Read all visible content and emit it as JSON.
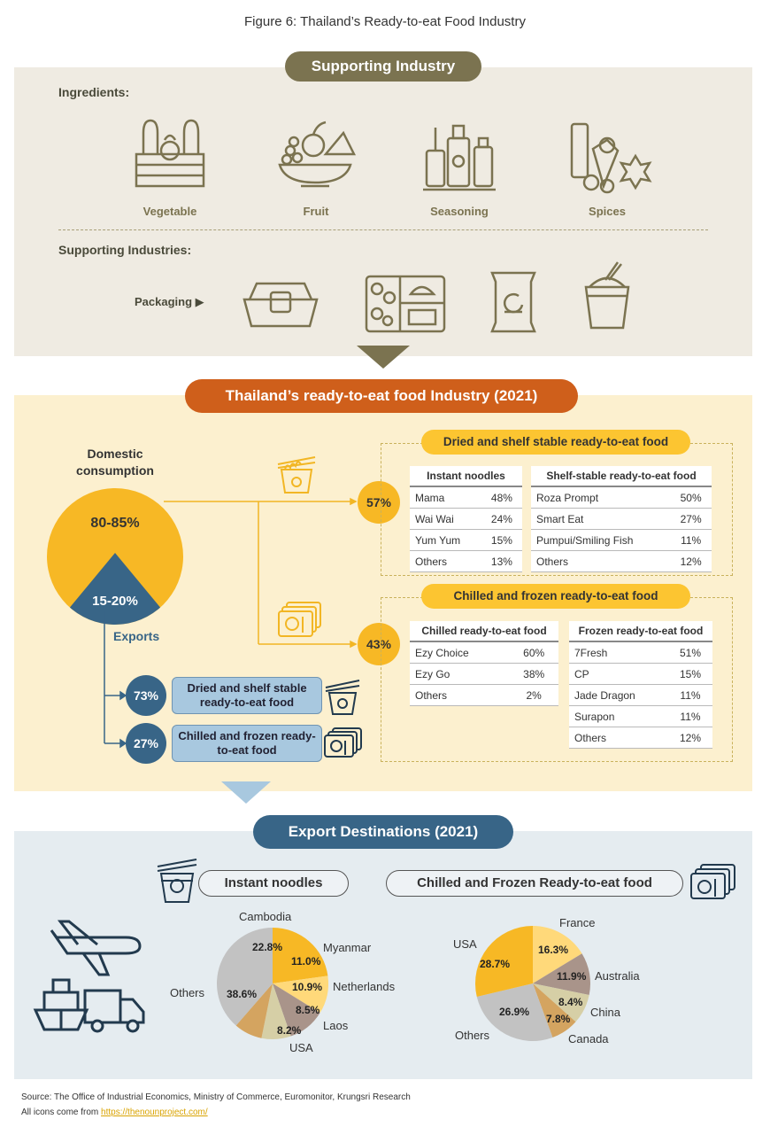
{
  "figure_title": "Figure 6: Thailand’s Ready-to-eat Food Industry",
  "supporting": {
    "header": "Supporting Industry",
    "ingredients_label": "Ingredients:",
    "ingredients": [
      {
        "label": "Vegetable",
        "icon": "vegetable-crate-icon"
      },
      {
        "label": "Fruit",
        "icon": "fruit-bowl-icon"
      },
      {
        "label": "Seasoning",
        "icon": "seasoning-bottles-icon"
      },
      {
        "label": "Spices",
        "icon": "spices-icon"
      }
    ],
    "industries_label": "Supporting Industries:",
    "packaging_label": "Packaging ▶",
    "packaging_icons": [
      "food-box-icon",
      "bento-tray-icon",
      "snack-bag-icon",
      "noodle-cup-icon"
    ]
  },
  "industry": {
    "header": "Thailand’s ready-to-eat food Industry (2021)",
    "domestic_label": "Domestic consumption",
    "domestic_value": "80-85%",
    "export_value": "15-20%",
    "exports_label": "Exports",
    "dried_share": "57%",
    "chilled_share": "43%",
    "dried_title": "Dried and shelf stable ready-to-eat food",
    "chilled_title": "Chilled and frozen ready-to-eat food",
    "instant_noodles": {
      "header": "Instant noodles",
      "rows": [
        [
          "Mama",
          "48%"
        ],
        [
          "Wai Wai",
          "24%"
        ],
        [
          "Yum Yum",
          "15%"
        ],
        [
          "Others",
          "13%"
        ]
      ]
    },
    "shelf_stable": {
      "header": "Shelf-stable ready-to-eat food",
      "rows": [
        [
          "Roza Prompt",
          "50%"
        ],
        [
          "Smart Eat",
          "27%"
        ],
        [
          "Pumpui/Smiling Fish",
          "11%"
        ],
        [
          "Others",
          "12%"
        ]
      ]
    },
    "chilled": {
      "header": "Chilled ready-to-eat food",
      "rows": [
        [
          "Ezy Choice",
          "60%"
        ],
        [
          "Ezy Go",
          "38%"
        ],
        [
          "Others",
          "2%"
        ]
      ]
    },
    "frozen": {
      "header": "Frozen ready-to-eat food",
      "rows": [
        [
          "7Fresh",
          "51%"
        ],
        [
          "CP",
          "15%"
        ],
        [
          "Jade Dragon",
          "11%"
        ],
        [
          "Surapon",
          "11%"
        ],
        [
          "Others",
          "12%"
        ]
      ]
    },
    "export_dried_share": "73%",
    "export_dried_label": "Dried and shelf stable ready-to-eat food",
    "export_chilled_share": "27%",
    "export_chilled_label": "Chilled and frozen ready-to-eat food"
  },
  "exports": {
    "header": "Export Destinations (2021)",
    "noodles_label": "Instant noodles",
    "chilled_label": "Chilled and Frozen Ready-to-eat food"
  },
  "chart_data": [
    {
      "type": "pie",
      "categories": [
        "Cambodia",
        "Myanmar",
        "Netherlands",
        "Laos",
        "USA",
        "Others"
      ],
      "values": [
        22.8,
        11.0,
        10.9,
        8.5,
        8.2,
        38.6
      ],
      "value_labels": [
        "22.8%",
        "11.0%",
        "10.9%",
        "8.5%",
        "8.2%",
        "38.6%"
      ],
      "colors": [
        "#f7b825",
        "#ffd97a",
        "#a9948a",
        "#d6cfa6",
        "#d4a460",
        "#c2c2c2"
      ]
    },
    {
      "type": "pie",
      "categories": [
        "France",
        "Australia",
        "China",
        "Canada",
        "Others",
        "USA"
      ],
      "values": [
        16.3,
        11.9,
        8.4,
        7.8,
        26.9,
        28.7
      ],
      "value_labels": [
        "16.3%",
        "11.9%",
        "8.4%",
        "7.8%",
        "26.9%",
        "28.7%"
      ],
      "colors": [
        "#ffd97a",
        "#a9948a",
        "#d6cfa6",
        "#d4a460",
        "#c2c2c2",
        "#f7b825"
      ]
    }
  ],
  "source": {
    "text": "Source: The Office of Industrial Economics, Ministry of Commerce, Euromonitor, Krungsri Research",
    "icons_prefix": "All icons come from ",
    "icons_link": "https://thenounproject.com/"
  }
}
